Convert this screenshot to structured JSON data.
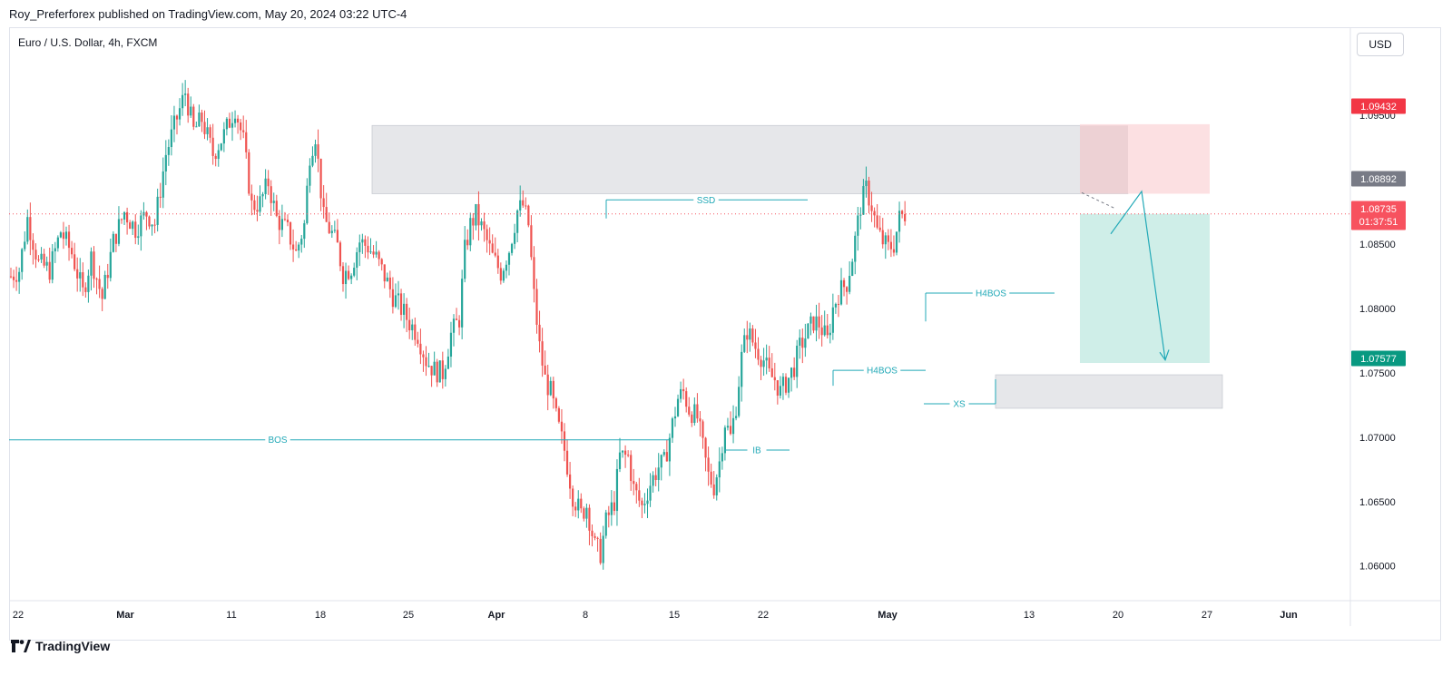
{
  "header": {
    "published": "Roy_Preferforex published on TradingView.com, May 20, 2024 03:22 UTC-4"
  },
  "symbol": {
    "title": "Euro / U.S. Dollar, 4h, FXCM"
  },
  "currency_button": "USD",
  "footer": {
    "brand": "TradingView",
    "logo_icon": "tradingview-logo-icon"
  },
  "chart_data": {
    "type": "candlestick",
    "title": "Euro / U.S. Dollar, 4h, FXCM",
    "y_axis": {
      "ticks": [
        1.06,
        1.065,
        1.07,
        1.075,
        1.08,
        1.085,
        1.09,
        1.095
      ],
      "tick_labels": [
        "1.06000",
        "1.06500",
        "1.07000",
        "1.07500",
        "1.08000",
        "1.08500",
        "1.09000",
        "1.09500"
      ],
      "range": [
        1.0573,
        1.0996
      ]
    },
    "x_axis": {
      "labels": [
        "22",
        "Mar",
        "11",
        "18",
        "25",
        "Apr",
        "8",
        "15",
        "22",
        "May",
        "13",
        "20",
        "27",
        "Jun"
      ]
    },
    "price_labels": [
      {
        "value": "1.09432",
        "color": "#f23645"
      },
      {
        "value": "1.08892",
        "color": "#787b86"
      },
      {
        "value": "1.08735",
        "sub": "01:37:51",
        "color": "#f7525f"
      },
      {
        "value": "1.07577",
        "color": "#089981"
      }
    ],
    "colors": {
      "up": "#26a69a",
      "down": "#ef5350",
      "line": "#22a9b7"
    },
    "path": [
      [
        0,
        1.0825
      ],
      [
        3,
        1.083
      ],
      [
        6,
        1.087
      ],
      [
        10,
        1.0835
      ],
      [
        14,
        1.083
      ],
      [
        18,
        1.086
      ],
      [
        22,
        1.0843
      ],
      [
        26,
        1.0812
      ],
      [
        29,
        1.084
      ],
      [
        33,
        1.0808
      ],
      [
        37,
        1.0852
      ],
      [
        41,
        1.0875
      ],
      [
        45,
        1.0862
      ],
      [
        49,
        1.0874
      ],
      [
        52,
        1.0866
      ],
      [
        56,
        1.092
      ],
      [
        60,
        1.0948
      ],
      [
        63,
        1.0968
      ],
      [
        66,
        1.0938
      ],
      [
        69,
        1.0947
      ],
      [
        73,
        1.092
      ],
      [
        77,
        1.0935
      ],
      [
        81,
        1.0956
      ],
      [
        84,
        1.093
      ],
      [
        87,
        1.088
      ],
      [
        90,
        1.0882
      ],
      [
        93,
        1.0898
      ],
      [
        96,
        1.087
      ],
      [
        100,
        1.086
      ],
      [
        103,
        1.0843
      ],
      [
        106,
        1.0865
      ],
      [
        108,
        1.092
      ],
      [
        110,
        1.0935
      ],
      [
        113,
        1.087
      ],
      [
        116,
        1.0858
      ],
      [
        118,
        1.0848
      ],
      [
        120,
        1.0827
      ],
      [
        123,
        1.0832
      ],
      [
        126,
        1.0852
      ],
      [
        129,
        1.0848
      ],
      [
        132,
        1.0839
      ],
      [
        135,
        1.0825
      ],
      [
        138,
        1.081
      ],
      [
        141,
        1.08
      ],
      [
        144,
        1.0789
      ],
      [
        147,
        1.078
      ],
      [
        150,
        1.076
      ],
      [
        153,
        1.0752
      ],
      [
        156,
        1.075
      ],
      [
        159,
        1.078
      ],
      [
        162,
        1.0792
      ],
      [
        164,
        1.0845
      ],
      [
        166,
        1.0865
      ],
      [
        168,
        1.0873
      ],
      [
        171,
        1.0858
      ],
      [
        174,
        1.084
      ],
      [
        177,
        1.0828
      ],
      [
        180,
        1.0846
      ],
      [
        183,
        1.0876
      ],
      [
        185,
        1.088
      ],
      [
        187,
        1.0865
      ],
      [
        189,
        1.081
      ],
      [
        191,
        1.077
      ],
      [
        193,
        1.0745
      ],
      [
        195,
        1.0735
      ],
      [
        197,
        1.0715
      ],
      [
        200,
        1.069
      ],
      [
        203,
        1.0655
      ],
      [
        206,
        1.064
      ],
      [
        208,
        1.0647
      ],
      [
        211,
        1.0615
      ],
      [
        213,
        1.061
      ],
      [
        215,
        1.0634
      ],
      [
        218,
        1.065
      ],
      [
        220,
        1.0685
      ],
      [
        223,
        1.0685
      ],
      [
        225,
        1.066
      ],
      [
        228,
        1.0646
      ],
      [
        231,
        1.0664
      ],
      [
        234,
        1.0677
      ],
      [
        236,
        1.068
      ],
      [
        238,
        1.07
      ],
      [
        241,
        1.073
      ],
      [
        243,
        1.0735
      ],
      [
        245,
        1.0722
      ],
      [
        248,
        1.0715
      ],
      [
        250,
        1.0692
      ],
      [
        252,
        1.067
      ],
      [
        254,
        1.0662
      ],
      [
        256,
        1.0681
      ],
      [
        258,
        1.0712
      ],
      [
        260,
        1.07
      ],
      [
        262,
        1.0725
      ],
      [
        264,
        1.0762
      ],
      [
        266,
        1.0783
      ],
      [
        269,
        1.077
      ],
      [
        272,
        1.076
      ],
      [
        274,
        1.0748
      ],
      [
        276,
        1.0745
      ],
      [
        278,
        1.0735
      ],
      [
        281,
        1.0746
      ],
      [
        283,
        1.0755
      ],
      [
        285,
        1.077
      ],
      [
        288,
        1.0782
      ],
      [
        290,
        1.079
      ],
      [
        292,
        1.0788
      ],
      [
        295,
        1.0775
      ],
      [
        297,
        1.08
      ],
      [
        299,
        1.0812
      ],
      [
        302,
        1.082
      ],
      [
        304,
        1.084
      ],
      [
        307,
        1.088
      ],
      [
        309,
        1.0893
      ],
      [
        311,
        1.088
      ],
      [
        313,
        1.086
      ],
      [
        315,
        1.0852
      ],
      [
        317,
        1.0847
      ],
      [
        319,
        1.085
      ],
      [
        321,
        1.087
      ],
      [
        323,
        1.08735
      ]
    ],
    "annotations": [
      {
        "label": "SSD",
        "kind": "level",
        "price": 1.08844
      },
      {
        "label": "BOS",
        "kind": "level",
        "price": 1.0698
      },
      {
        "label": "IB",
        "kind": "level",
        "price": 1.069
      },
      {
        "label": "H4BOS",
        "kind": "level",
        "price": 1.0812
      },
      {
        "label": "H4BOS",
        "kind": "level",
        "price": 1.0752
      },
      {
        "label": "XS",
        "kind": "level",
        "price": 1.0726
      }
    ],
    "zones": [
      {
        "kind": "supply",
        "top": 1.09422,
        "bottom": 1.08892,
        "color": "#e6e7ea"
      },
      {
        "kind": "demand",
        "top": 1.07485,
        "bottom": 1.07225,
        "color": "#e6e7ea"
      },
      {
        "kind": "stop",
        "top": 1.09432,
        "bottom": 1.08892,
        "color": "#fce0e2"
      },
      {
        "kind": "target",
        "top": 1.08735,
        "bottom": 1.07577,
        "color": "#cfeee8"
      }
    ]
  }
}
